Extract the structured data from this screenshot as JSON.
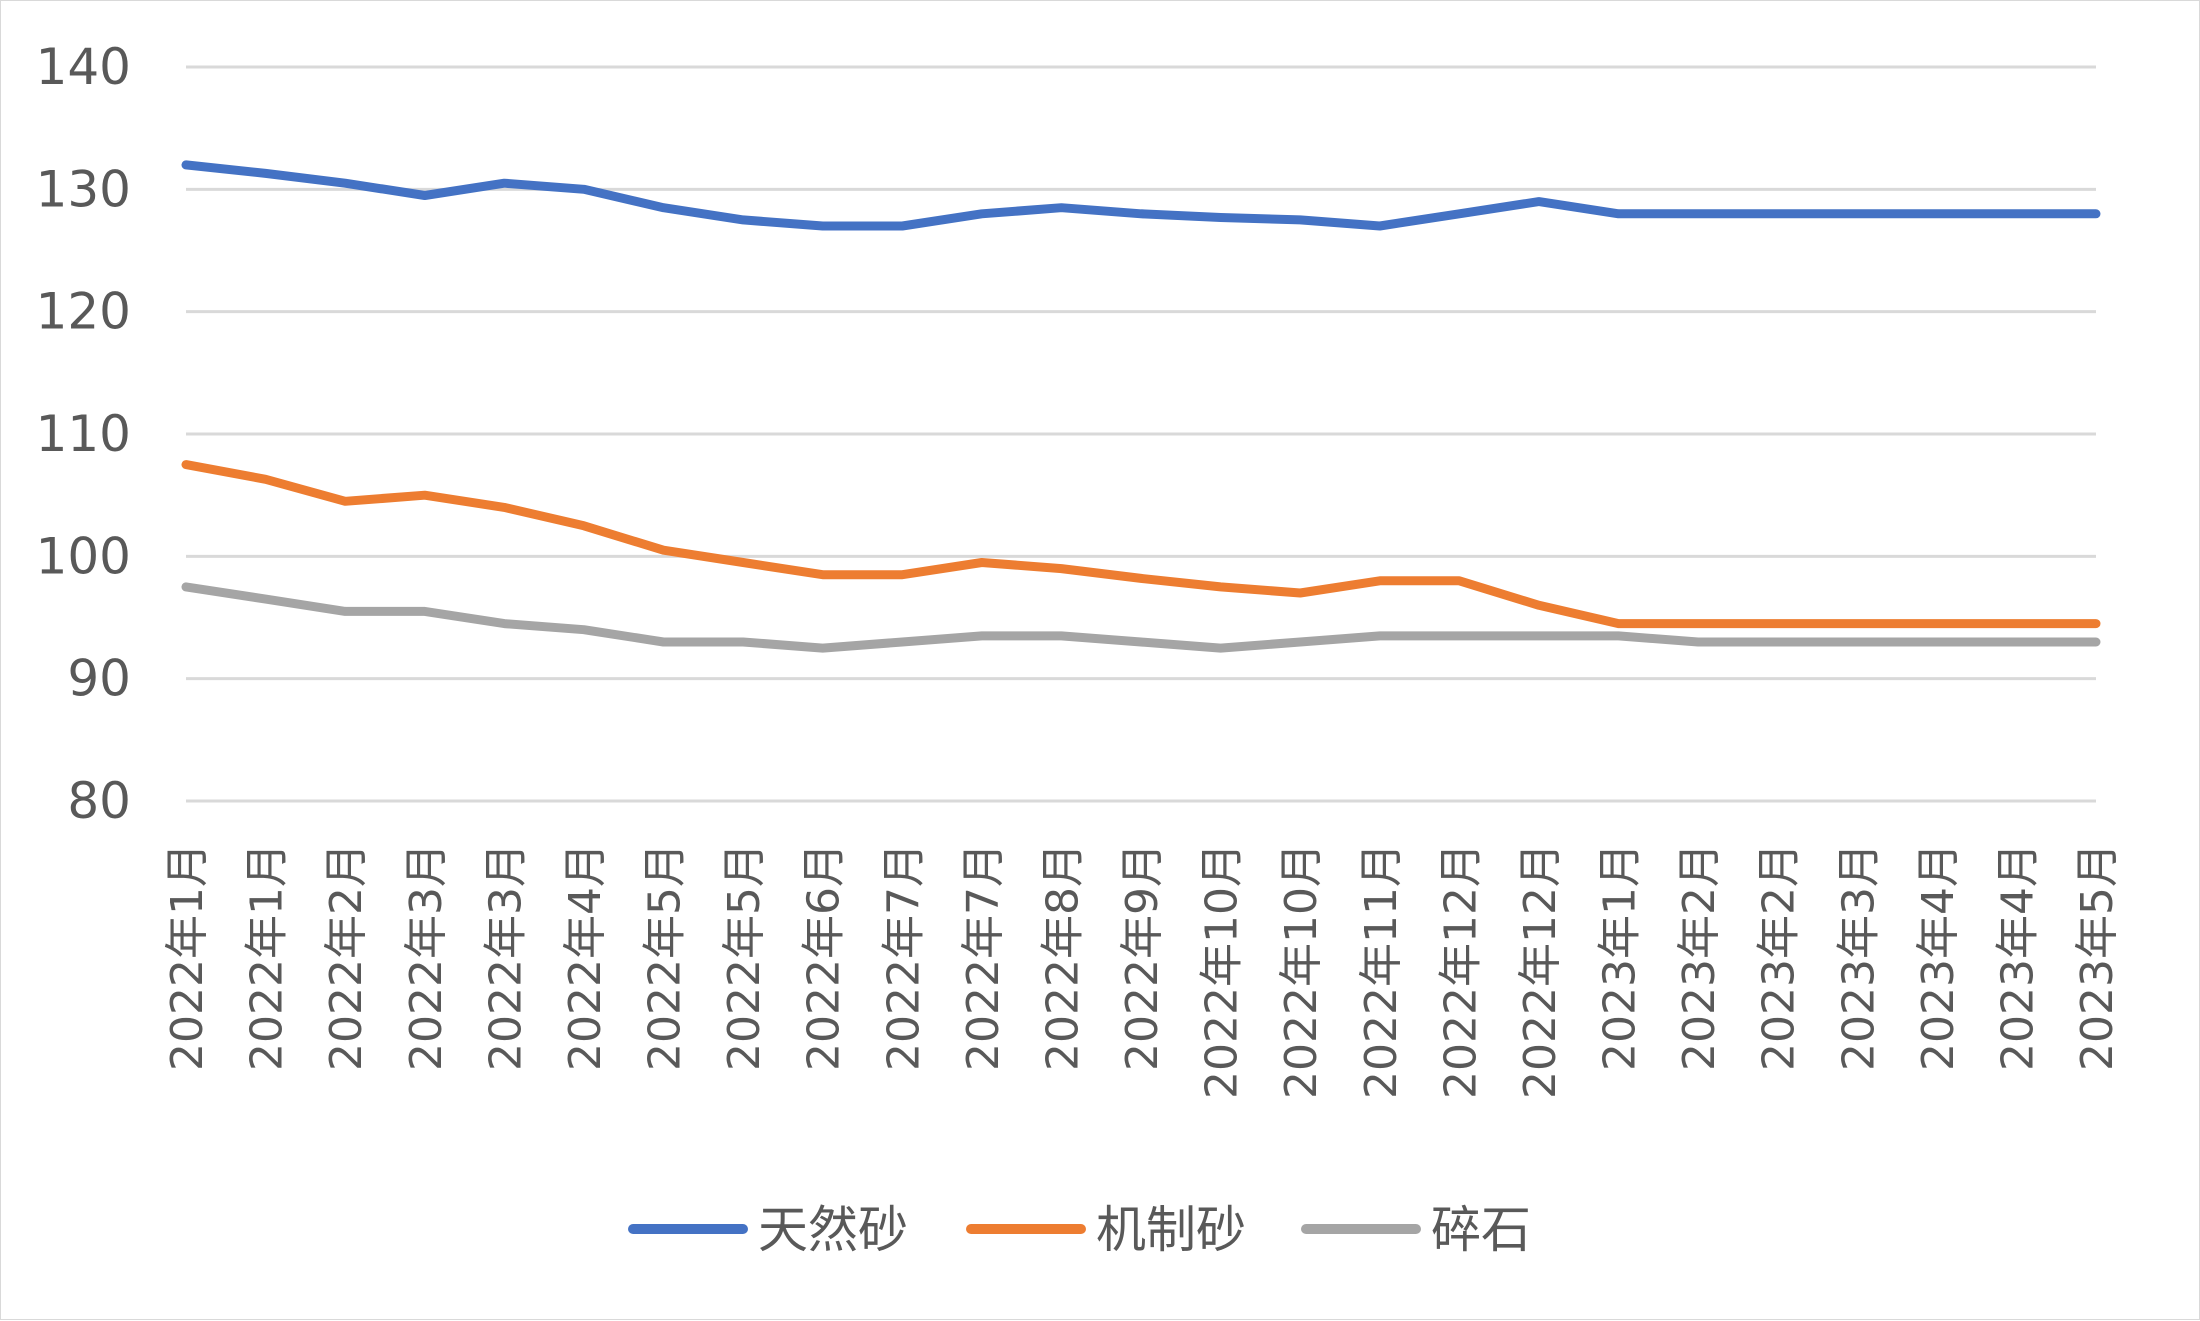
{
  "chart_data": {
    "type": "line",
    "title": "",
    "xlabel": "",
    "ylabel": "",
    "ylim": [
      80,
      140
    ],
    "yticks": [
      80,
      90,
      100,
      110,
      120,
      130,
      140
    ],
    "grid": true,
    "legend_position": "bottom",
    "categories": [
      "2022年1月",
      "2022年1月",
      "2022年2月",
      "2022年3月",
      "2022年3月",
      "2022年4月",
      "2022年5月",
      "2022年5月",
      "2022年6月",
      "2022年7月",
      "2022年7月",
      "2022年8月",
      "2022年9月",
      "2022年10月",
      "2022年10月",
      "2022年11月",
      "2022年12月",
      "2022年12月",
      "2023年1月",
      "2023年2月",
      "2023年2月",
      "2023年3月",
      "2023年4月",
      "2023年4月",
      "2023年5月"
    ],
    "series": [
      {
        "name": "天然砂",
        "color": "#4472c4",
        "values": [
          132,
          131.3,
          130.5,
          129.5,
          130.5,
          130,
          128.5,
          127.5,
          127,
          127,
          128,
          128.5,
          128,
          127.7,
          127.5,
          127,
          128,
          129,
          128,
          128,
          128,
          128,
          128,
          128,
          128
        ]
      },
      {
        "name": "机制砂",
        "color": "#ed7d31",
        "values": [
          107.5,
          106.3,
          104.5,
          105,
          104,
          102.5,
          100.5,
          99.5,
          98.5,
          98.5,
          99.5,
          99,
          98.2,
          97.5,
          97,
          98,
          98,
          96,
          94.5,
          94.5,
          94.5,
          94.5,
          94.5,
          94.5,
          94.5
        ]
      },
      {
        "name": "碎石",
        "color": "#a5a5a5",
        "values": [
          97.5,
          96.5,
          95.5,
          95.5,
          94.5,
          94,
          93,
          93,
          92.5,
          93,
          93.5,
          93.5,
          93,
          92.5,
          93,
          93.5,
          93.5,
          93.5,
          93.5,
          93,
          93,
          93,
          93,
          93,
          93
        ]
      }
    ]
  }
}
